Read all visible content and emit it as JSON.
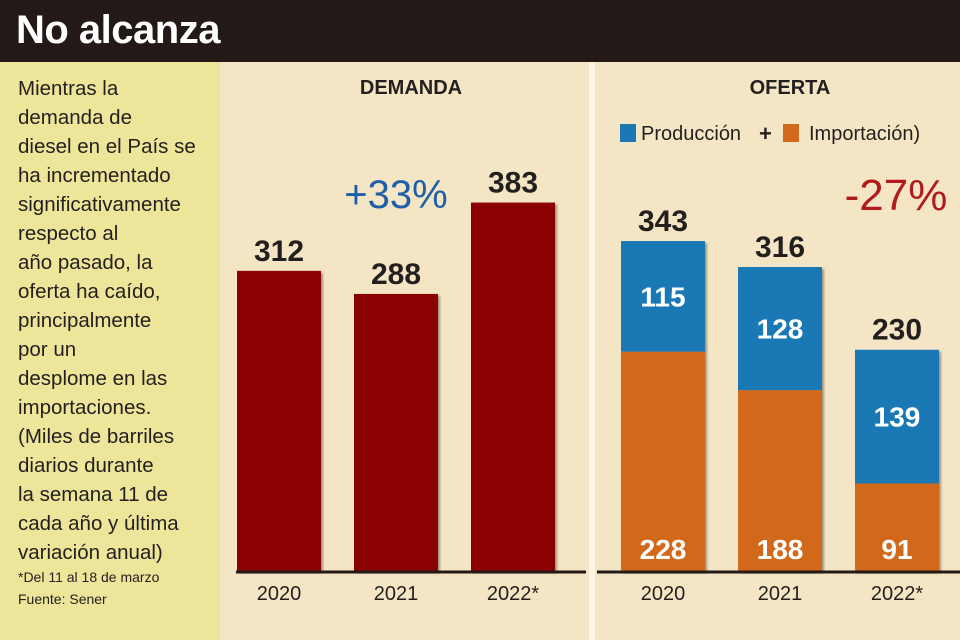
{
  "title": "No alcanza",
  "description": "Mientras la\ndemanda de\ndiesel en el País se\nha incrementado\nsignificativamente\nrespecto al\naño pasado, la\noferta ha caído,\nprincipalmente\npor un\ndesplome en las\nimportaciones.\n(Miles de barriles\ndiarios durante\nla semana 11 de\ncada año y última\nvariación anual)",
  "footnote": "*Del 11 al 18 de marzo\nFuente: Sener",
  "colors": {
    "demanda": "#8b0000",
    "produccion": "#1a79b4",
    "importacion": "#d2691a",
    "positive_change": "#1f5ea8",
    "negative_change": "#b01c1c"
  },
  "chart_data": [
    {
      "type": "bar",
      "title": "DEMANDA",
      "categories": [
        "2020",
        "2021",
        "2022*"
      ],
      "values": [
        312,
        288,
        383
      ],
      "annotation": "+33%"
    },
    {
      "type": "bar",
      "stacked": true,
      "title": "OFERTA",
      "legend_text": [
        "Producción",
        "+",
        "Importación)"
      ],
      "categories": [
        "2020",
        "2021",
        "2022*"
      ],
      "totals": [
        343,
        316,
        230
      ],
      "series": [
        {
          "name": "Importación)",
          "values": [
            228,
            188,
            91
          ]
        },
        {
          "name": "Producción",
          "values": [
            115,
            128,
            139
          ]
        }
      ],
      "annotation": "-27%"
    }
  ]
}
